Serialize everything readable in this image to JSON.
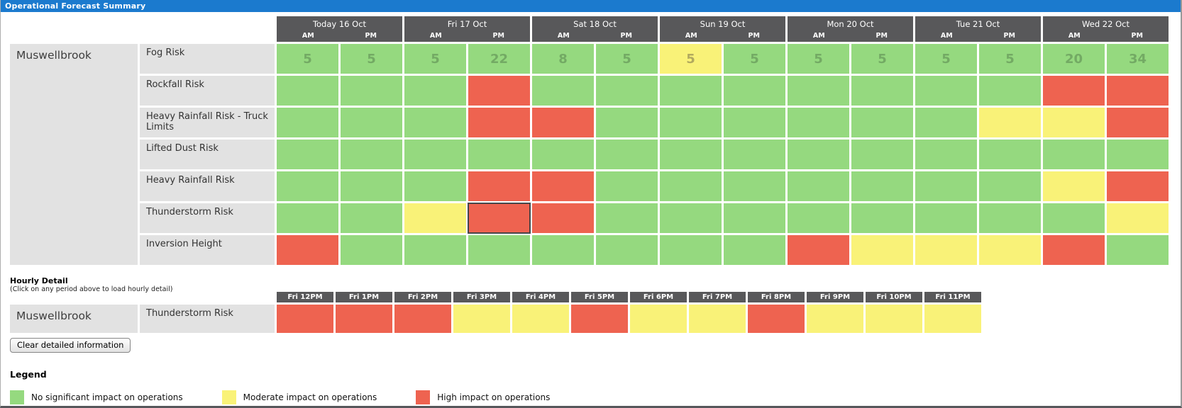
{
  "title_bar": {
    "title": "Operational Forecast Summary"
  },
  "colors": {
    "green": "#95d97f",
    "yellow": "#f9f278",
    "red": "#ee6350",
    "header_dark": "#58585a",
    "label_bg": "#e2e2e2",
    "title_blue": "#1b7ace",
    "value_green": "#73aa64",
    "value_yellow": "#b2aa5e"
  },
  "summary": {
    "site": "Muswellbrook",
    "days": [
      {
        "label": "Today 16 Oct",
        "periods": [
          "AM",
          "PM"
        ]
      },
      {
        "label": "Fri 17 Oct",
        "periods": [
          "AM",
          "PM"
        ]
      },
      {
        "label": "Sat 18 Oct",
        "periods": [
          "AM",
          "PM"
        ]
      },
      {
        "label": "Sun 19 Oct",
        "periods": [
          "AM",
          "PM"
        ]
      },
      {
        "label": "Mon 20 Oct",
        "periods": [
          "AM",
          "PM"
        ]
      },
      {
        "label": "Tue 21 Oct",
        "periods": [
          "AM",
          "PM"
        ]
      },
      {
        "label": "Wed 22 Oct",
        "periods": [
          "AM",
          "PM"
        ]
      }
    ],
    "rows": [
      {
        "label": "Fog Risk",
        "cells": [
          {
            "value": "5",
            "level": "green"
          },
          {
            "value": "5",
            "level": "green"
          },
          {
            "value": "5",
            "level": "green"
          },
          {
            "value": "22",
            "level": "green"
          },
          {
            "value": "8",
            "level": "green"
          },
          {
            "value": "5",
            "level": "green"
          },
          {
            "value": "5",
            "level": "yellow"
          },
          {
            "value": "5",
            "level": "green"
          },
          {
            "value": "5",
            "level": "green"
          },
          {
            "value": "5",
            "level": "green"
          },
          {
            "value": "5",
            "level": "green"
          },
          {
            "value": "5",
            "level": "green"
          },
          {
            "value": "20",
            "level": "green"
          },
          {
            "value": "34",
            "level": "green"
          }
        ]
      },
      {
        "label": "Rockfall Risk",
        "cells": [
          {
            "level": "green"
          },
          {
            "level": "green"
          },
          {
            "level": "green"
          },
          {
            "level": "red"
          },
          {
            "level": "green"
          },
          {
            "level": "green"
          },
          {
            "level": "green"
          },
          {
            "level": "green"
          },
          {
            "level": "green"
          },
          {
            "level": "green"
          },
          {
            "level": "green"
          },
          {
            "level": "green"
          },
          {
            "level": "red"
          },
          {
            "level": "red"
          }
        ]
      },
      {
        "label": "Heavy Rainfall Risk - Truck Limits",
        "cells": [
          {
            "level": "green"
          },
          {
            "level": "green"
          },
          {
            "level": "green"
          },
          {
            "level": "red"
          },
          {
            "level": "red"
          },
          {
            "level": "green"
          },
          {
            "level": "green"
          },
          {
            "level": "green"
          },
          {
            "level": "green"
          },
          {
            "level": "green"
          },
          {
            "level": "green"
          },
          {
            "level": "yellow"
          },
          {
            "level": "yellow"
          },
          {
            "level": "red"
          }
        ]
      },
      {
        "label": "Lifted Dust Risk",
        "cells": [
          {
            "level": "green"
          },
          {
            "level": "green"
          },
          {
            "level": "green"
          },
          {
            "level": "green"
          },
          {
            "level": "green"
          },
          {
            "level": "green"
          },
          {
            "level": "green"
          },
          {
            "level": "green"
          },
          {
            "level": "green"
          },
          {
            "level": "green"
          },
          {
            "level": "green"
          },
          {
            "level": "green"
          },
          {
            "level": "green"
          },
          {
            "level": "green"
          }
        ]
      },
      {
        "label": "Heavy Rainfall Risk",
        "cells": [
          {
            "level": "green"
          },
          {
            "level": "green"
          },
          {
            "level": "green"
          },
          {
            "level": "red"
          },
          {
            "level": "red"
          },
          {
            "level": "green"
          },
          {
            "level": "green"
          },
          {
            "level": "green"
          },
          {
            "level": "green"
          },
          {
            "level": "green"
          },
          {
            "level": "green"
          },
          {
            "level": "green"
          },
          {
            "level": "yellow"
          },
          {
            "level": "red"
          }
        ]
      },
      {
        "label": "Thunderstorm Risk",
        "cells": [
          {
            "level": "green"
          },
          {
            "level": "green"
          },
          {
            "level": "yellow"
          },
          {
            "level": "red",
            "selected": true
          },
          {
            "level": "red"
          },
          {
            "level": "green"
          },
          {
            "level": "green"
          },
          {
            "level": "green"
          },
          {
            "level": "green"
          },
          {
            "level": "green"
          },
          {
            "level": "green"
          },
          {
            "level": "green"
          },
          {
            "level": "green"
          },
          {
            "level": "yellow"
          }
        ]
      },
      {
        "label": "Inversion Height",
        "cells": [
          {
            "level": "red"
          },
          {
            "level": "green"
          },
          {
            "level": "green"
          },
          {
            "level": "green"
          },
          {
            "level": "green"
          },
          {
            "level": "green"
          },
          {
            "level": "green"
          },
          {
            "level": "green"
          },
          {
            "level": "red"
          },
          {
            "level": "yellow"
          },
          {
            "level": "yellow"
          },
          {
            "level": "yellow"
          },
          {
            "level": "red"
          },
          {
            "level": "green"
          }
        ]
      }
    ]
  },
  "hourly": {
    "heading": "Hourly Detail",
    "subheading": "(Click on any period above to load hourly detail)",
    "site": "Muswellbrook",
    "row_label": "Thunderstorm Risk",
    "columns": [
      "Fri 12PM",
      "Fri 1PM",
      "Fri 2PM",
      "Fri 3PM",
      "Fri 4PM",
      "Fri 5PM",
      "Fri 6PM",
      "Fri 7PM",
      "Fri 8PM",
      "Fri 9PM",
      "Fri 10PM",
      "Fri 11PM"
    ],
    "cells": [
      {
        "level": "red"
      },
      {
        "level": "red"
      },
      {
        "level": "red"
      },
      {
        "level": "yellow"
      },
      {
        "level": "yellow"
      },
      {
        "level": "red"
      },
      {
        "level": "yellow"
      },
      {
        "level": "yellow"
      },
      {
        "level": "red"
      },
      {
        "level": "yellow"
      },
      {
        "level": "yellow"
      },
      {
        "level": "yellow"
      }
    ]
  },
  "clear_button": {
    "label": "Clear detailed information"
  },
  "legend": {
    "heading": "Legend",
    "items": [
      {
        "level": "green",
        "label": "No significant impact on operations"
      },
      {
        "level": "yellow",
        "label": "Moderate impact on operations"
      },
      {
        "level": "red",
        "label": "High impact on operations"
      }
    ]
  }
}
